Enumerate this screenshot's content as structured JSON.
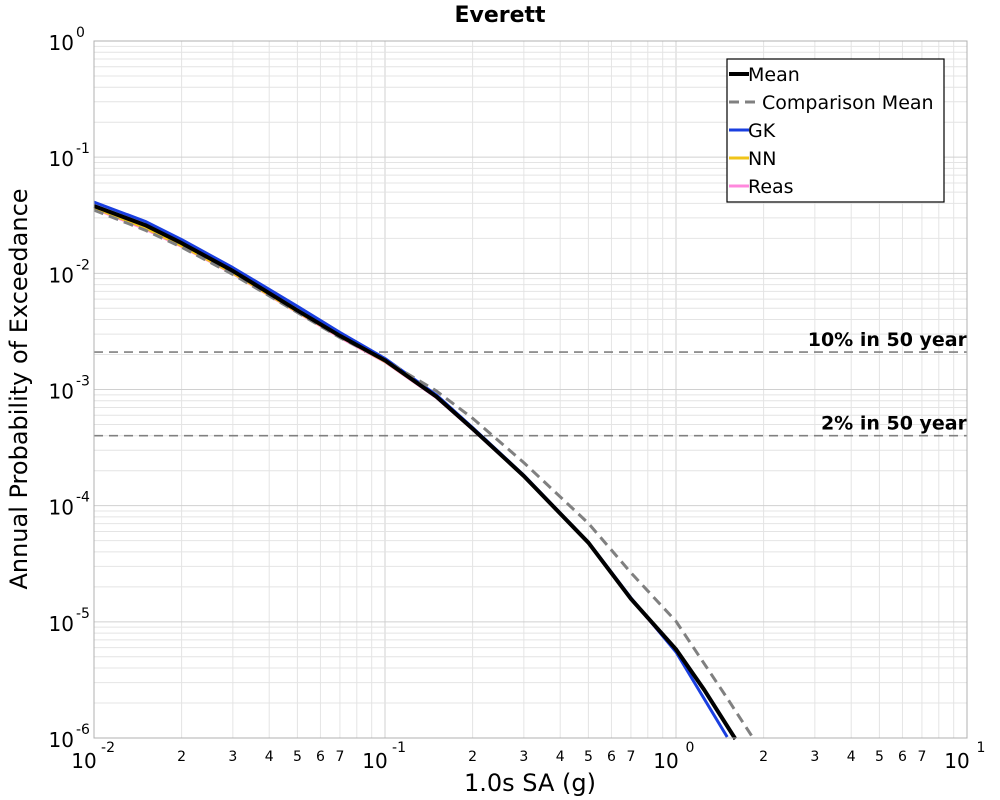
{
  "chart_data": {
    "type": "line",
    "title": "Everett",
    "xlabel": "1.0s SA (g)",
    "ylabel": "Annual Probability of Exceedance",
    "x_scale": "log",
    "y_scale": "log",
    "xlim": [
      0.01,
      10
    ],
    "ylim": [
      1e-06,
      1
    ],
    "grid": true,
    "legend_position": "top-right",
    "x_major_ticks": [
      {
        "base": "10",
        "exp": "-2",
        "value": 0.01
      },
      {
        "base": "10",
        "exp": "-1",
        "value": 0.1
      },
      {
        "base": "10",
        "exp": "0",
        "value": 1
      },
      {
        "base": "10",
        "exp": "1",
        "value": 10
      }
    ],
    "x_minor_tick_labels": [
      "2",
      "3",
      "4",
      "5",
      "6",
      "7"
    ],
    "y_major_ticks": [
      {
        "base": "10",
        "exp": "0",
        "value": 1
      },
      {
        "base": "10",
        "exp": "-1",
        "value": 0.1
      },
      {
        "base": "10",
        "exp": "-2",
        "value": 0.01
      },
      {
        "base": "10",
        "exp": "-3",
        "value": 0.001
      },
      {
        "base": "10",
        "exp": "-4",
        "value": 0.0001
      },
      {
        "base": "10",
        "exp": "-5",
        "value": 1e-05
      },
      {
        "base": "10",
        "exp": "-6",
        "value": 1e-06
      }
    ],
    "reference_lines": [
      {
        "label": "10% in 50 year",
        "y": 0.0021,
        "color": "#808080"
      },
      {
        "label": "2% in 50 year",
        "y": 0.0004,
        "color": "#808080"
      }
    ],
    "series": [
      {
        "name": "Reas",
        "color": "#ff88dd",
        "style": "solid",
        "width": 2.5,
        "x": [
          0.01,
          0.015,
          0.02,
          0.03,
          0.05,
          0.07,
          0.1,
          0.15,
          0.2,
          0.3,
          0.5,
          0.7,
          1.0
        ],
        "y": [
          0.036,
          0.024,
          0.017,
          0.0099,
          0.0046,
          0.0028,
          0.00172,
          0.00085,
          0.00045,
          0.000178,
          4.75e-05,
          1.58e-05,
          5.5e-06
        ]
      },
      {
        "name": "NN",
        "color": "#f0c419",
        "style": "solid",
        "width": 2.5,
        "x": [
          0.01,
          0.015,
          0.02,
          0.03,
          0.05,
          0.07,
          0.1,
          0.15,
          0.2,
          0.3,
          0.5,
          0.7,
          1.0
        ],
        "y": [
          0.0365,
          0.0245,
          0.0172,
          0.01,
          0.00465,
          0.00285,
          0.00174,
          0.00086,
          0.000455,
          0.00018,
          4.8e-05,
          1.6e-05,
          5.6e-06
        ]
      },
      {
        "name": "GK",
        "color": "#1a3fe0",
        "style": "solid",
        "width": 3,
        "x": [
          0.01,
          0.015,
          0.02,
          0.03,
          0.05,
          0.07,
          0.1,
          0.15,
          0.2,
          0.3,
          0.5,
          0.7,
          1.0,
          1.5
        ],
        "y": [
          0.041,
          0.028,
          0.0195,
          0.0112,
          0.0052,
          0.0031,
          0.00185,
          0.0009,
          0.00047,
          0.000183,
          4.85e-05,
          1.61e-05,
          5.5e-06,
          1.02e-06
        ]
      },
      {
        "name": "Comparison Mean",
        "color": "#808080",
        "style": "dashed",
        "width": 3,
        "x": [
          0.01,
          0.015,
          0.02,
          0.03,
          0.05,
          0.07,
          0.1,
          0.15,
          0.2,
          0.3,
          0.5,
          0.7,
          1.0,
          1.5,
          1.85
        ],
        "y": [
          0.035,
          0.0235,
          0.0168,
          0.0098,
          0.0046,
          0.0028,
          0.00178,
          0.000975,
          0.000565,
          0.000235,
          7.05e-05,
          2.65e-05,
          1.01e-05,
          2.2e-06,
          9.8e-07
        ]
      },
      {
        "name": "Mean",
        "color": "#000000",
        "style": "solid",
        "width": 4,
        "x": [
          0.01,
          0.015,
          0.02,
          0.03,
          0.05,
          0.07,
          0.1,
          0.15,
          0.2,
          0.3,
          0.5,
          0.7,
          1.0,
          1.25,
          1.6
        ],
        "y": [
          0.038,
          0.026,
          0.0182,
          0.0105,
          0.0048,
          0.0029,
          0.00178,
          0.00087,
          0.00046,
          0.00018,
          4.8e-05,
          1.58e-05,
          5.8e-06,
          2.6e-06,
          9.8e-07
        ]
      }
    ],
    "legend": [
      "Mean",
      "Comparison Mean",
      "GK",
      "NN",
      "Reas"
    ]
  }
}
